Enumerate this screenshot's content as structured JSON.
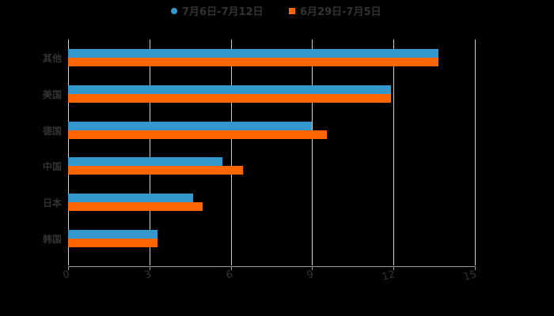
{
  "chart_data": {
    "type": "bar",
    "orientation": "horizontal",
    "title": "",
    "categories": [
      "其他",
      "美国",
      "德国",
      "中国",
      "日本",
      "韩国"
    ],
    "series": [
      {
        "name": "7月6日-7月12日",
        "color": "#3399cc",
        "values": [
          13.65,
          11.9,
          9.0,
          5.7,
          4.6,
          3.3
        ]
      },
      {
        "name": "6月29日-7月5日",
        "color": "#ff6600",
        "values": [
          13.65,
          11.9,
          9.55,
          6.45,
          4.95,
          3.3
        ]
      }
    ],
    "xlabel": "",
    "ylabel": "",
    "xlim": [
      0,
      15
    ],
    "xticks": [
      "0",
      "3",
      "6",
      "9",
      "12",
      "15"
    ],
    "grid": true,
    "legend_position": "top"
  },
  "legend": {
    "s1": "7月6日-7月12日",
    "s2": "6月29日-7月5日"
  }
}
